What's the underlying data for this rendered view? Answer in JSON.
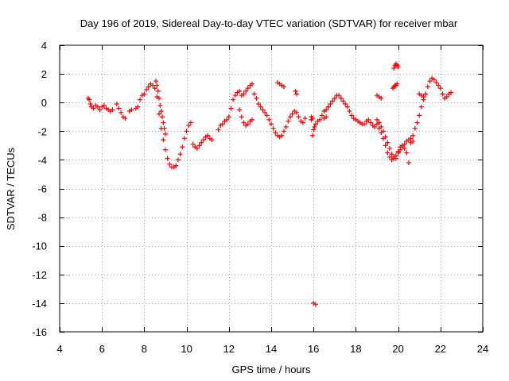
{
  "chart_data": {
    "type": "scatter",
    "title": "Day 196 of 2019, Sidereal Day-to-day VTEC variation (SDTVAR) for receiver mbar",
    "xlabel": "GPS time / hours",
    "ylabel": "SDTVAR / TECUs",
    "xlim": [
      4,
      24
    ],
    "ylim": [
      -16,
      4
    ],
    "xticks": [
      4,
      6,
      8,
      10,
      12,
      14,
      16,
      18,
      20,
      22,
      24
    ],
    "yticks": [
      4,
      2,
      0,
      -2,
      -4,
      -6,
      -8,
      -10,
      -12,
      -14,
      -16
    ],
    "grid": true,
    "marker": "plus",
    "color": "#ff0000",
    "series": [
      {
        "name": "SDTVAR",
        "x": [
          5.35,
          5.4,
          5.45,
          5.5,
          5.6,
          5.7,
          5.8,
          5.9,
          6.0,
          6.1,
          6.2,
          6.3,
          6.4,
          6.5,
          6.7,
          6.8,
          6.9,
          7.0,
          7.1,
          7.3,
          7.4,
          7.6,
          7.7,
          7.8,
          7.9,
          8.0,
          8.1,
          8.2,
          8.3,
          8.4,
          8.5,
          8.6,
          8.7,
          8.8,
          8.9,
          9.0,
          9.1,
          9.2,
          9.3,
          9.4,
          9.5,
          9.6,
          9.7,
          9.8,
          9.9,
          10.0,
          10.1,
          10.2,
          10.3,
          10.4,
          10.5,
          10.6,
          10.7,
          10.8,
          10.9,
          11.0,
          11.1,
          11.2,
          11.5,
          11.6,
          11.7,
          11.8,
          11.9,
          12.0,
          12.1,
          12.2,
          12.3,
          12.4,
          12.5,
          12.6,
          12.7,
          12.8,
          12.9,
          13.0,
          13.1,
          13.2,
          13.3,
          13.4,
          13.5,
          13.6,
          13.7,
          13.8,
          13.9,
          14.0,
          14.1,
          14.2,
          14.3,
          14.4,
          14.5,
          14.6,
          14.7,
          14.8,
          14.9,
          15.0,
          15.1,
          15.2,
          15.3,
          15.4,
          15.5,
          15.6,
          15.9,
          15.95,
          16.0,
          16.05,
          16.1,
          16.2,
          16.3,
          16.4,
          16.5,
          16.6,
          16.7,
          16.8,
          16.9,
          17.0,
          17.1,
          17.2,
          17.3,
          17.4,
          17.5,
          17.6,
          17.7,
          17.8,
          17.9,
          18.0,
          18.1,
          18.2,
          18.3,
          18.4,
          18.5,
          18.6,
          18.7,
          18.8,
          18.9,
          19.0,
          19.1,
          19.2,
          19.3,
          19.4,
          19.5,
          19.6,
          19.7,
          19.8,
          19.9,
          20.0,
          20.1,
          20.2,
          20.3,
          20.4,
          20.5,
          20.6,
          20.7,
          20.8,
          20.9,
          21.0,
          21.1,
          21.2,
          21.3,
          21.4,
          21.5,
          21.6,
          21.7,
          21.8,
          21.9,
          22.0,
          22.1,
          22.2,
          22.3,
          22.4,
          22.5,
          8.55,
          8.6,
          8.65,
          8.7,
          8.75,
          8.8,
          8.85,
          8.9,
          8.95,
          9.0,
          12.5,
          12.6,
          12.7,
          12.8,
          12.9,
          13.0,
          13.1,
          14.3,
          14.4,
          14.5,
          14.6,
          19.0,
          19.1,
          19.2,
          19.3,
          19.4,
          19.5,
          19.6,
          19.7,
          19.8,
          19.9,
          20.0,
          20.1,
          20.2,
          20.3,
          20.4,
          20.5,
          19.8,
          19.85,
          19.9,
          19.95,
          20.0,
          19.75,
          19.8,
          19.85,
          19.9,
          19.95,
          19.0,
          19.1,
          19.2,
          16.0,
          16.1,
          15.9,
          15.95,
          15.15,
          15.2,
          16.5,
          16.6,
          20.6,
          20.7,
          21.0,
          21.1,
          21.2
        ],
        "y": [
          0.3,
          0.2,
          -0.1,
          -0.3,
          -0.4,
          -0.2,
          -0.3,
          -0.5,
          -0.3,
          -0.2,
          -0.4,
          -0.5,
          -0.6,
          -0.5,
          -0.1,
          -0.4,
          -0.7,
          -1.0,
          -1.1,
          -0.6,
          -0.5,
          -0.4,
          -0.3,
          0.2,
          0.5,
          0.6,
          0.9,
          1.1,
          1.3,
          1.2,
          1.0,
          0.4,
          -0.8,
          -1.8,
          -2.6,
          -3.3,
          -3.9,
          -4.3,
          -4.5,
          -4.5,
          -4.4,
          -4.0,
          -3.6,
          -3.1,
          -2.5,
          -2.0,
          -1.6,
          -1.4,
          -2.9,
          -3.1,
          -3.2,
          -3.0,
          -2.8,
          -2.6,
          -2.4,
          -2.3,
          -2.5,
          -2.6,
          -1.9,
          -1.6,
          -1.5,
          -1.3,
          -1.2,
          -1.0,
          -0.4,
          0.2,
          0.5,
          0.7,
          0.8,
          0.5,
          0.6,
          0.8,
          1.0,
          1.2,
          1.3,
          0.6,
          0.3,
          -0.1,
          -0.3,
          -0.5,
          -0.7,
          -0.9,
          -1.2,
          -1.5,
          -1.8,
          -2.1,
          -2.3,
          -2.4,
          -2.3,
          -2.0,
          -1.7,
          -1.3,
          -1.0,
          -0.8,
          -0.6,
          -0.7,
          -1.0,
          -1.3,
          -1.4,
          -1.1,
          -1.2,
          -2.3,
          -1.9,
          -1.7,
          -1.5,
          -1.3,
          -1.2,
          -0.9,
          -0.6,
          -0.5,
          -0.3,
          -0.1,
          0.1,
          0.3,
          0.5,
          0.5,
          0.3,
          0.1,
          -0.1,
          -0.3,
          -0.6,
          -0.9,
          -1.1,
          -1.2,
          -1.3,
          -1.4,
          -1.5,
          -1.5,
          -1.3,
          -1.2,
          -1.4,
          -1.6,
          -1.7,
          -1.5,
          -1.8,
          -2.1,
          -2.5,
          -3.0,
          -3.5,
          -3.8,
          -4.0,
          -3.9,
          -3.7,
          -3.4,
          -3.1,
          -3.0,
          -2.9,
          -2.7,
          -2.6,
          -2.5,
          -2.3,
          -1.8,
          -1.4,
          -0.9,
          -0.3,
          0.2,
          0.6,
          1.1,
          1.5,
          1.7,
          1.6,
          1.4,
          1.2,
          1.0,
          0.6,
          0.3,
          0.4,
          0.6,
          0.7,
          1.5,
          1.2,
          0.8,
          0.3,
          -0.2,
          -0.6,
          -1.0,
          -1.4,
          -1.8,
          -2.2,
          -0.5,
          -1.0,
          -1.4,
          -1.6,
          -1.5,
          -1.3,
          -1.2,
          1.4,
          1.3,
          1.2,
          1.1,
          -1.2,
          -1.4,
          -1.7,
          -2.0,
          -2.4,
          -2.8,
          -3.2,
          -3.6,
          -3.8,
          -3.9,
          -3.5,
          -3.3,
          -3.1,
          -3.2,
          -3.5,
          -4.2,
          2.4,
          2.6,
          2.7,
          2.6,
          2.5,
          1.0,
          1.1,
          1.2,
          1.2,
          1.3,
          0.5,
          0.4,
          0.3,
          -14.0,
          -14.1,
          -1.0,
          -1.1,
          0.8,
          0.6,
          -1.1,
          -1.0,
          -2.8,
          -2.7,
          0.6,
          0.5,
          0.4
        ]
      }
    ]
  }
}
